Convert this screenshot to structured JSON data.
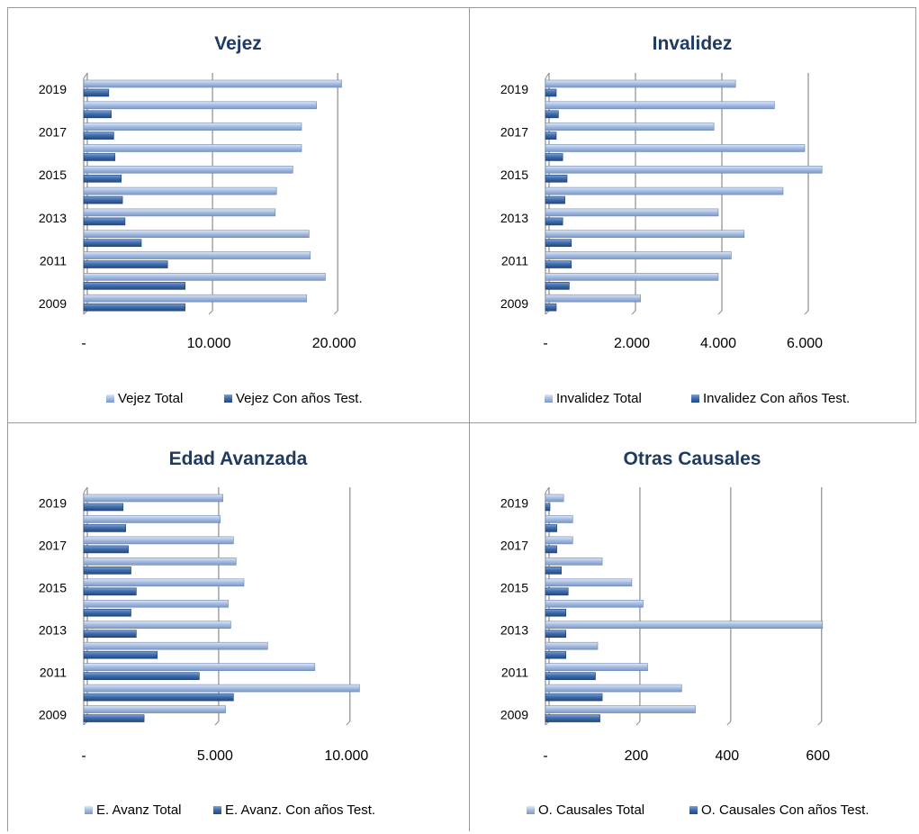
{
  "colors": {
    "total": "#a9bfe3",
    "with_years": "#3f6fb0",
    "title": "#1f3b63",
    "axis": "#8c8c8c"
  },
  "chart_data": [
    {
      "type": "bar",
      "orientation": "horizontal",
      "title": "Vejez",
      "categories": [
        "2009",
        "2010",
        "2011",
        "2012",
        "2013",
        "2014",
        "2015",
        "2016",
        "2017",
        "2018",
        "2019"
      ],
      "y_tick_labels": [
        "2009",
        "2011",
        "2013",
        "2015",
        "2017",
        "2019"
      ],
      "series": [
        {
          "name": "Vejez Total",
          "values": [
            17800,
            19300,
            18100,
            18000,
            15300,
            15400,
            16700,
            17400,
            17400,
            18600,
            20600
          ]
        },
        {
          "name": "Vejez Con años Test.",
          "values": [
            8100,
            8100,
            6700,
            4600,
            3300,
            3100,
            3000,
            2500,
            2400,
            2200,
            2000
          ]
        }
      ],
      "xlim": [
        0,
        22000
      ],
      "x_ticks": [
        0,
        10000,
        20000
      ],
      "x_tick_labels": [
        "-",
        "10.000",
        "20.000"
      ],
      "legend": "bottom",
      "grid": true
    },
    {
      "type": "bar",
      "orientation": "horizontal",
      "title": "Invalidez",
      "categories": [
        "2009",
        "2010",
        "2011",
        "2012",
        "2013",
        "2014",
        "2015",
        "2016",
        "2017",
        "2018",
        "2019"
      ],
      "y_tick_labels": [
        "2009",
        "2011",
        "2013",
        "2015",
        "2017",
        "2019"
      ],
      "series": [
        {
          "name": "Invalidez Total",
          "values": [
            2200,
            4000,
            4300,
            4600,
            4000,
            5500,
            6400,
            6000,
            3900,
            5300,
            4400
          ]
        },
        {
          "name": "Invalidez Con años Test.",
          "values": [
            250,
            550,
            600,
            600,
            400,
            450,
            500,
            400,
            250,
            300,
            250
          ]
        }
      ],
      "xlim": [
        0,
        7000
      ],
      "x_ticks": [
        0,
        2000,
        4000,
        6000
      ],
      "x_tick_labels": [
        "-",
        "2.000",
        "4.000",
        "6.000"
      ],
      "legend": "bottom",
      "grid": true
    },
    {
      "type": "bar",
      "orientation": "horizontal",
      "title": "Edad Avanzada",
      "categories": [
        "2009",
        "2010",
        "2011",
        "2012",
        "2013",
        "2014",
        "2015",
        "2016",
        "2017",
        "2018",
        "2019"
      ],
      "y_tick_labels": [
        "2009",
        "2011",
        "2013",
        "2015",
        "2017",
        "2019"
      ],
      "series": [
        {
          "name": "E. Avanz Total",
          "values": [
            5400,
            10500,
            8800,
            7000,
            5600,
            5500,
            6100,
            5800,
            5700,
            5200,
            5300
          ]
        },
        {
          "name": "E. Avanz. Con años Test.",
          "values": [
            2300,
            5700,
            4400,
            2800,
            2000,
            1800,
            2000,
            1800,
            1700,
            1600,
            1500
          ]
        }
      ],
      "xlim": [
        0,
        11000
      ],
      "x_ticks": [
        0,
        5000,
        10000
      ],
      "x_tick_labels": [
        "-",
        "5.000",
        "10.000"
      ],
      "legend": "bottom",
      "grid": true
    },
    {
      "type": "bar",
      "orientation": "horizontal",
      "title": "Otras Causales",
      "categories": [
        "2009",
        "2010",
        "2011",
        "2012",
        "2013",
        "2014",
        "2015",
        "2016",
        "2017",
        "2018",
        "2019"
      ],
      "y_tick_labels": [
        "2009",
        "2011",
        "2013",
        "2015",
        "2017",
        "2019"
      ],
      "series": [
        {
          "name": "O. Causales Total",
          "values": [
            330,
            300,
            225,
            115,
            610,
            215,
            190,
            125,
            60,
            60,
            40
          ]
        },
        {
          "name": "O. Causales Con años Test.",
          "values": [
            120,
            125,
            110,
            45,
            45,
            45,
            50,
            35,
            25,
            25,
            10
          ]
        }
      ],
      "xlim": [
        0,
        650
      ],
      "x_ticks": [
        0,
        200,
        400,
        600
      ],
      "x_tick_labels": [
        "-",
        "200",
        "400",
        "600"
      ],
      "legend": "bottom",
      "grid": true
    }
  ]
}
